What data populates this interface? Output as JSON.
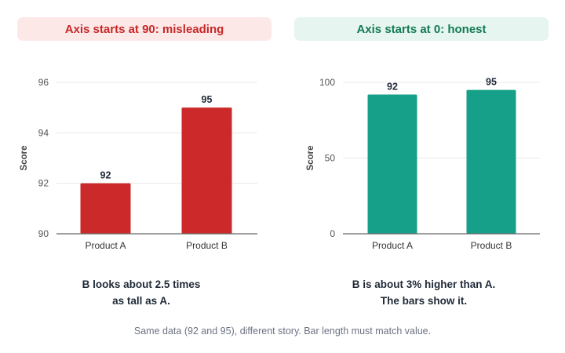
{
  "colors": {
    "misleading_bar": "#cc2a2a",
    "misleading_title_bg": "#fde8e8",
    "misleading_title_text": "#c62828",
    "honest_bar": "#16a08a",
    "honest_title_bg": "#e6f5ef",
    "honest_title_text": "#137a55"
  },
  "chart_data": [
    {
      "type": "bar",
      "title": "Axis starts at 90: misleading",
      "categories": [
        "Product A",
        "Product B"
      ],
      "values": [
        92,
        95
      ],
      "ylabel": "Score",
      "ylim": [
        90,
        96
      ],
      "yticks": [
        "90",
        "92",
        "94",
        "96"
      ],
      "grid": true,
      "caption": [
        "B looks about 2.5 times",
        "as tall as A."
      ]
    },
    {
      "type": "bar",
      "title": "Axis starts at 0: honest",
      "categories": [
        "Product A",
        "Product B"
      ],
      "values": [
        92,
        95
      ],
      "ylabel": "Score",
      "ylim": [
        0,
        100
      ],
      "yticks": [
        "0",
        "50",
        "100"
      ],
      "grid": true,
      "caption": [
        "B is about 3% higher than A.",
        "The bars show it."
      ]
    }
  ],
  "footer": "Same data (92 and 95), different story. Bar length must match value."
}
